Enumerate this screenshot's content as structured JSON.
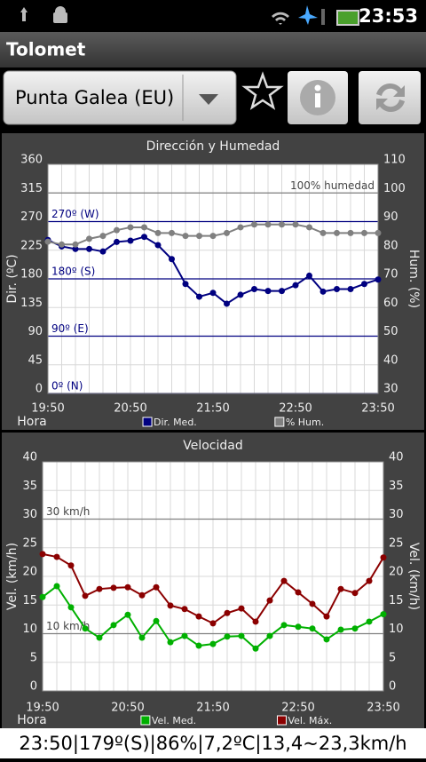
{
  "status_bar": {
    "time": "23:53"
  },
  "app_bar": {
    "title": "Tolomet"
  },
  "station_selector": {
    "selected": "Punta Galea (EU)"
  },
  "chart_data": [
    {
      "type": "line",
      "title": "Dirección y Humedad",
      "x_label": "Hora",
      "y_label": "Dir. (ºC)",
      "y2_label": "Hum. (%)",
      "x": [
        "19:50",
        "20:00",
        "20:10",
        "20:20",
        "20:30",
        "20:40",
        "20:50",
        "21:00",
        "21:10",
        "21:20",
        "21:30",
        "21:40",
        "21:50",
        "22:00",
        "22:10",
        "22:20",
        "22:30",
        "22:40",
        "22:50",
        "23:00",
        "23:10",
        "23:20",
        "23:30",
        "23:40",
        "23:50"
      ],
      "xlim": [
        "19:50",
        "23:50"
      ],
      "xticks": [
        "19:50",
        "20:50",
        "21:50",
        "22:50",
        "23:50"
      ],
      "ylim": [
        0,
        360
      ],
      "yticks": [
        0,
        45,
        90,
        135,
        180,
        225,
        270,
        315,
        360
      ],
      "y2lim": [
        30,
        110
      ],
      "y2ticks": [
        30,
        40,
        50,
        60,
        70,
        80,
        90,
        100,
        110
      ],
      "grid": true,
      "legend": "bottom",
      "series": [
        {
          "name": "Dir. Med.",
          "color": "#000080",
          "axis": "y",
          "values": [
            241,
            231,
            227,
            227,
            223,
            238,
            240,
            246,
            233,
            211,
            172,
            152,
            158,
            141,
            155,
            164,
            161,
            161,
            170,
            185,
            160,
            164,
            164,
            172,
            179
          ]
        },
        {
          "name": "% Hum.",
          "color": "#808080",
          "axis": "y2",
          "values": [
            83,
            82,
            82,
            84,
            85,
            87,
            88,
            88,
            86,
            86,
            85,
            85,
            85,
            86,
            88,
            89,
            89,
            89,
            89,
            88,
            86,
            86,
            86,
            86,
            86
          ]
        }
      ],
      "reference_lines": [
        {
          "value": 270,
          "label": "270º (W)",
          "axis": "y",
          "color": "#000080"
        },
        {
          "value": 180,
          "label": "180º (S)",
          "axis": "y",
          "color": "#000080"
        },
        {
          "value": 90,
          "label": "90º (E)",
          "axis": "y",
          "color": "#000080"
        },
        {
          "value": 0,
          "label": "0º (N)",
          "axis": "y",
          "color": "#000080"
        },
        {
          "value": 100,
          "label": "100% humedad",
          "axis": "y2",
          "color": "#808080"
        }
      ]
    },
    {
      "type": "line",
      "title": "Velocidad",
      "x_label": "Hora",
      "y_label": "Vel. (km/h)",
      "y2_label": "Vel. (km/h)",
      "x": [
        "19:50",
        "20:00",
        "20:10",
        "20:20",
        "20:30",
        "20:40",
        "20:50",
        "21:00",
        "21:10",
        "21:20",
        "21:30",
        "21:40",
        "21:50",
        "22:00",
        "22:10",
        "22:20",
        "22:30",
        "22:40",
        "22:50",
        "23:00",
        "23:10",
        "23:20",
        "23:30",
        "23:40",
        "23:50"
      ],
      "xlim": [
        "19:50",
        "23:50"
      ],
      "xticks": [
        "19:50",
        "20:50",
        "21:50",
        "22:50",
        "23:50"
      ],
      "ylim": [
        0,
        40
      ],
      "yticks": [
        0,
        5,
        10,
        15,
        20,
        25,
        30,
        35,
        40
      ],
      "y2lim": [
        0,
        40
      ],
      "y2ticks": [
        0,
        5,
        10,
        15,
        20,
        25,
        30,
        35,
        40
      ],
      "grid": true,
      "legend": "bottom",
      "series": [
        {
          "name": "Vel. Med.",
          "color": "#00b000",
          "axis": "y",
          "values": [
            16.4,
            18.3,
            14.6,
            10.9,
            9.3,
            11.5,
            13.3,
            9.3,
            12.2,
            8.5,
            9.6,
            7.9,
            8.2,
            9.5,
            9.6,
            7.4,
            9.6,
            11.5,
            11.2,
            10.9,
            9.0,
            10.7,
            10.9,
            12.1,
            13.4
          ]
        },
        {
          "name": "Vel. Máx.",
          "color": "#8b0000",
          "axis": "y",
          "values": [
            23.9,
            23.4,
            21.9,
            16.6,
            17.8,
            18.0,
            18.1,
            16.7,
            18.1,
            14.9,
            14.3,
            13.0,
            11.8,
            13.6,
            14.4,
            12.1,
            15.8,
            19.2,
            17.2,
            15.2,
            13.0,
            17.8,
            17.1,
            19.2,
            23.3
          ]
        }
      ],
      "reference_lines": [
        {
          "value": 30,
          "label": "30 km/h",
          "axis": "y",
          "color": "#808080"
        },
        {
          "value": 10,
          "label": "10 km/h",
          "axis": "y",
          "color": "#808080"
        }
      ]
    }
  ],
  "summary": "23:50|179º(S)|86%|7,2ºC|13,4~23,3km/h"
}
